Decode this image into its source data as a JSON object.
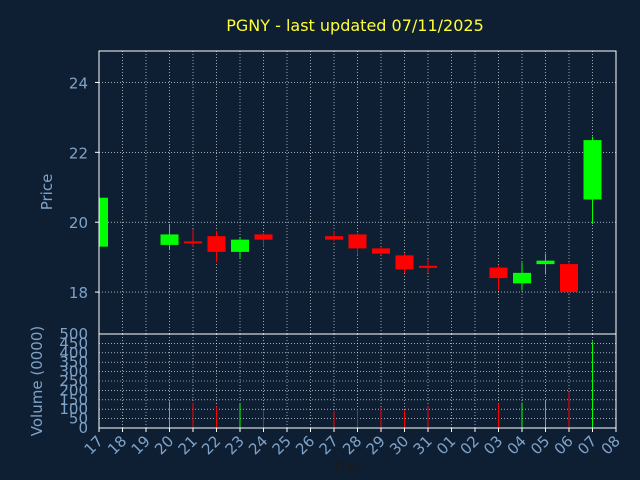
{
  "chart_data": {
    "type": "candlestick",
    "title": "PGNY - last updated 07/11/2025",
    "colors": {
      "background": "#0f1f33",
      "title": "#ffff33",
      "axis_text": "#7fa3c8",
      "frame": "#ffffff",
      "grid": "#ffffff",
      "up": "#00ff00",
      "down": "#ff0000"
    },
    "price_panel": {
      "ylabel": "Price",
      "ylim": [
        16.8,
        24.9
      ],
      "yticks": [
        18,
        20,
        22,
        24
      ],
      "grid": true
    },
    "volume_panel": {
      "ylabel": "Volume (0000)",
      "ylim": [
        0,
        500
      ],
      "yticks": [
        0,
        50,
        100,
        150,
        200,
        250,
        300,
        350,
        400,
        450,
        500
      ],
      "grid": true
    },
    "xlabel": "Day",
    "x_ticks": [
      "17",
      "18",
      "19",
      "20",
      "21",
      "22",
      "23",
      "24",
      "25",
      "26",
      "27",
      "28",
      "29",
      "30",
      "31",
      "01",
      "02",
      "03",
      "04",
      "05",
      "06",
      "07",
      "08"
    ],
    "candles": [
      {
        "day": "17",
        "open": 19.3,
        "high": 20.7,
        "low": 19.3,
        "close": 20.7,
        "volume": 0
      },
      {
        "day": "20",
        "open": 19.35,
        "high": 19.95,
        "low": 19.2,
        "close": 19.65,
        "volume": 140
      },
      {
        "day": "21",
        "open": 19.45,
        "high": 19.8,
        "low": 19.3,
        "close": 19.4,
        "volume": 135
      },
      {
        "day": "22",
        "open": 19.6,
        "high": 19.75,
        "low": 18.85,
        "close": 19.15,
        "volume": 115
      },
      {
        "day": "23",
        "open": 19.15,
        "high": 19.55,
        "low": 18.95,
        "close": 19.5,
        "volume": 130
      },
      {
        "day": "24",
        "open": 19.65,
        "high": 19.7,
        "low": 19.3,
        "close": 19.5,
        "volume": 95
      },
      {
        "day": "27",
        "open": 19.6,
        "high": 19.75,
        "low": 19.45,
        "close": 19.5,
        "volume": 90
      },
      {
        "day": "28",
        "open": 19.65,
        "high": 19.7,
        "low": 19.05,
        "close": 19.25,
        "volume": 100
      },
      {
        "day": "29",
        "open": 19.25,
        "high": 19.3,
        "low": 19.05,
        "close": 19.1,
        "volume": 110
      },
      {
        "day": "30",
        "open": 19.05,
        "high": 19.1,
        "low": 18.55,
        "close": 18.65,
        "volume": 95
      },
      {
        "day": "31",
        "open": 18.75,
        "high": 18.95,
        "low": 18.55,
        "close": 18.7,
        "volume": 115
      },
      {
        "day": "03",
        "open": 18.7,
        "high": 18.75,
        "low": 18.05,
        "close": 18.4,
        "volume": 130
      },
      {
        "day": "04",
        "open": 18.25,
        "high": 18.85,
        "low": 18.05,
        "close": 18.55,
        "volume": 135
      },
      {
        "day": "05",
        "open": 18.8,
        "high": 19.1,
        "low": 18.5,
        "close": 18.9,
        "volume": 150
      },
      {
        "day": "06",
        "open": 18.8,
        "high": 18.85,
        "low": 17.95,
        "close": 18.0,
        "volume": 190
      },
      {
        "day": "07",
        "open": 20.65,
        "high": 22.45,
        "low": 19.95,
        "close": 22.35,
        "volume": 460
      }
    ]
  }
}
